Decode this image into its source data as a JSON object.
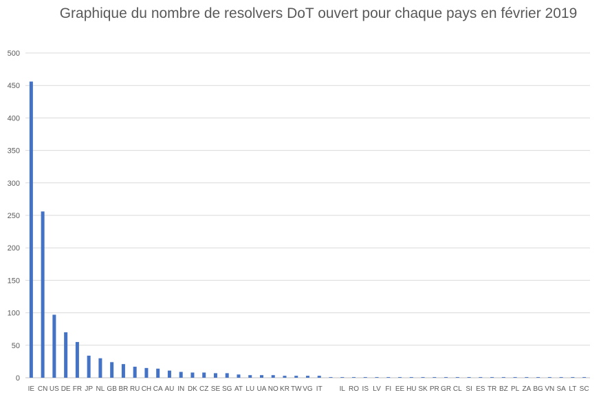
{
  "chart_data": {
    "type": "bar",
    "title": "Graphique du nombre de resolvers DoT ouvert pour chaque pays en février 2019",
    "xlabel": "",
    "ylabel": "",
    "ylim": [
      0,
      500
    ],
    "yticks": [
      0,
      50,
      100,
      150,
      200,
      250,
      300,
      350,
      400,
      450,
      500
    ],
    "grid": true,
    "legend": "none",
    "bar_color": "#4472C4",
    "categories": [
      "IE",
      "CN",
      "US",
      "DE",
      "FR",
      "JP",
      "NL",
      "GB",
      "BR",
      "RU",
      "CH",
      "CA",
      "AU",
      "IN",
      "DK",
      "CZ",
      "SE",
      "SG",
      "AT",
      "LU",
      "UA",
      "NO",
      "KR",
      "TW",
      "VG",
      "IT",
      "",
      "IL",
      "RO",
      "IS",
      "LV",
      "FI",
      "EE",
      "HU",
      "SK",
      "PR",
      "GR",
      "CL",
      "SI",
      "ES",
      "TR",
      "BZ",
      "PL",
      "ZA",
      "BG",
      "VN",
      "SA",
      "LT",
      "SC"
    ],
    "values": [
      456,
      256,
      97,
      70,
      55,
      34,
      30,
      24,
      21,
      17,
      15,
      14,
      11,
      9,
      8,
      8,
      7,
      7,
      5,
      4,
      4,
      4,
      3,
      3,
      3,
      3,
      1,
      1,
      1,
      1,
      1,
      1,
      1,
      1,
      1,
      1,
      1,
      1,
      1,
      1,
      1,
      1,
      1,
      1,
      1,
      1,
      1,
      1,
      1
    ]
  }
}
